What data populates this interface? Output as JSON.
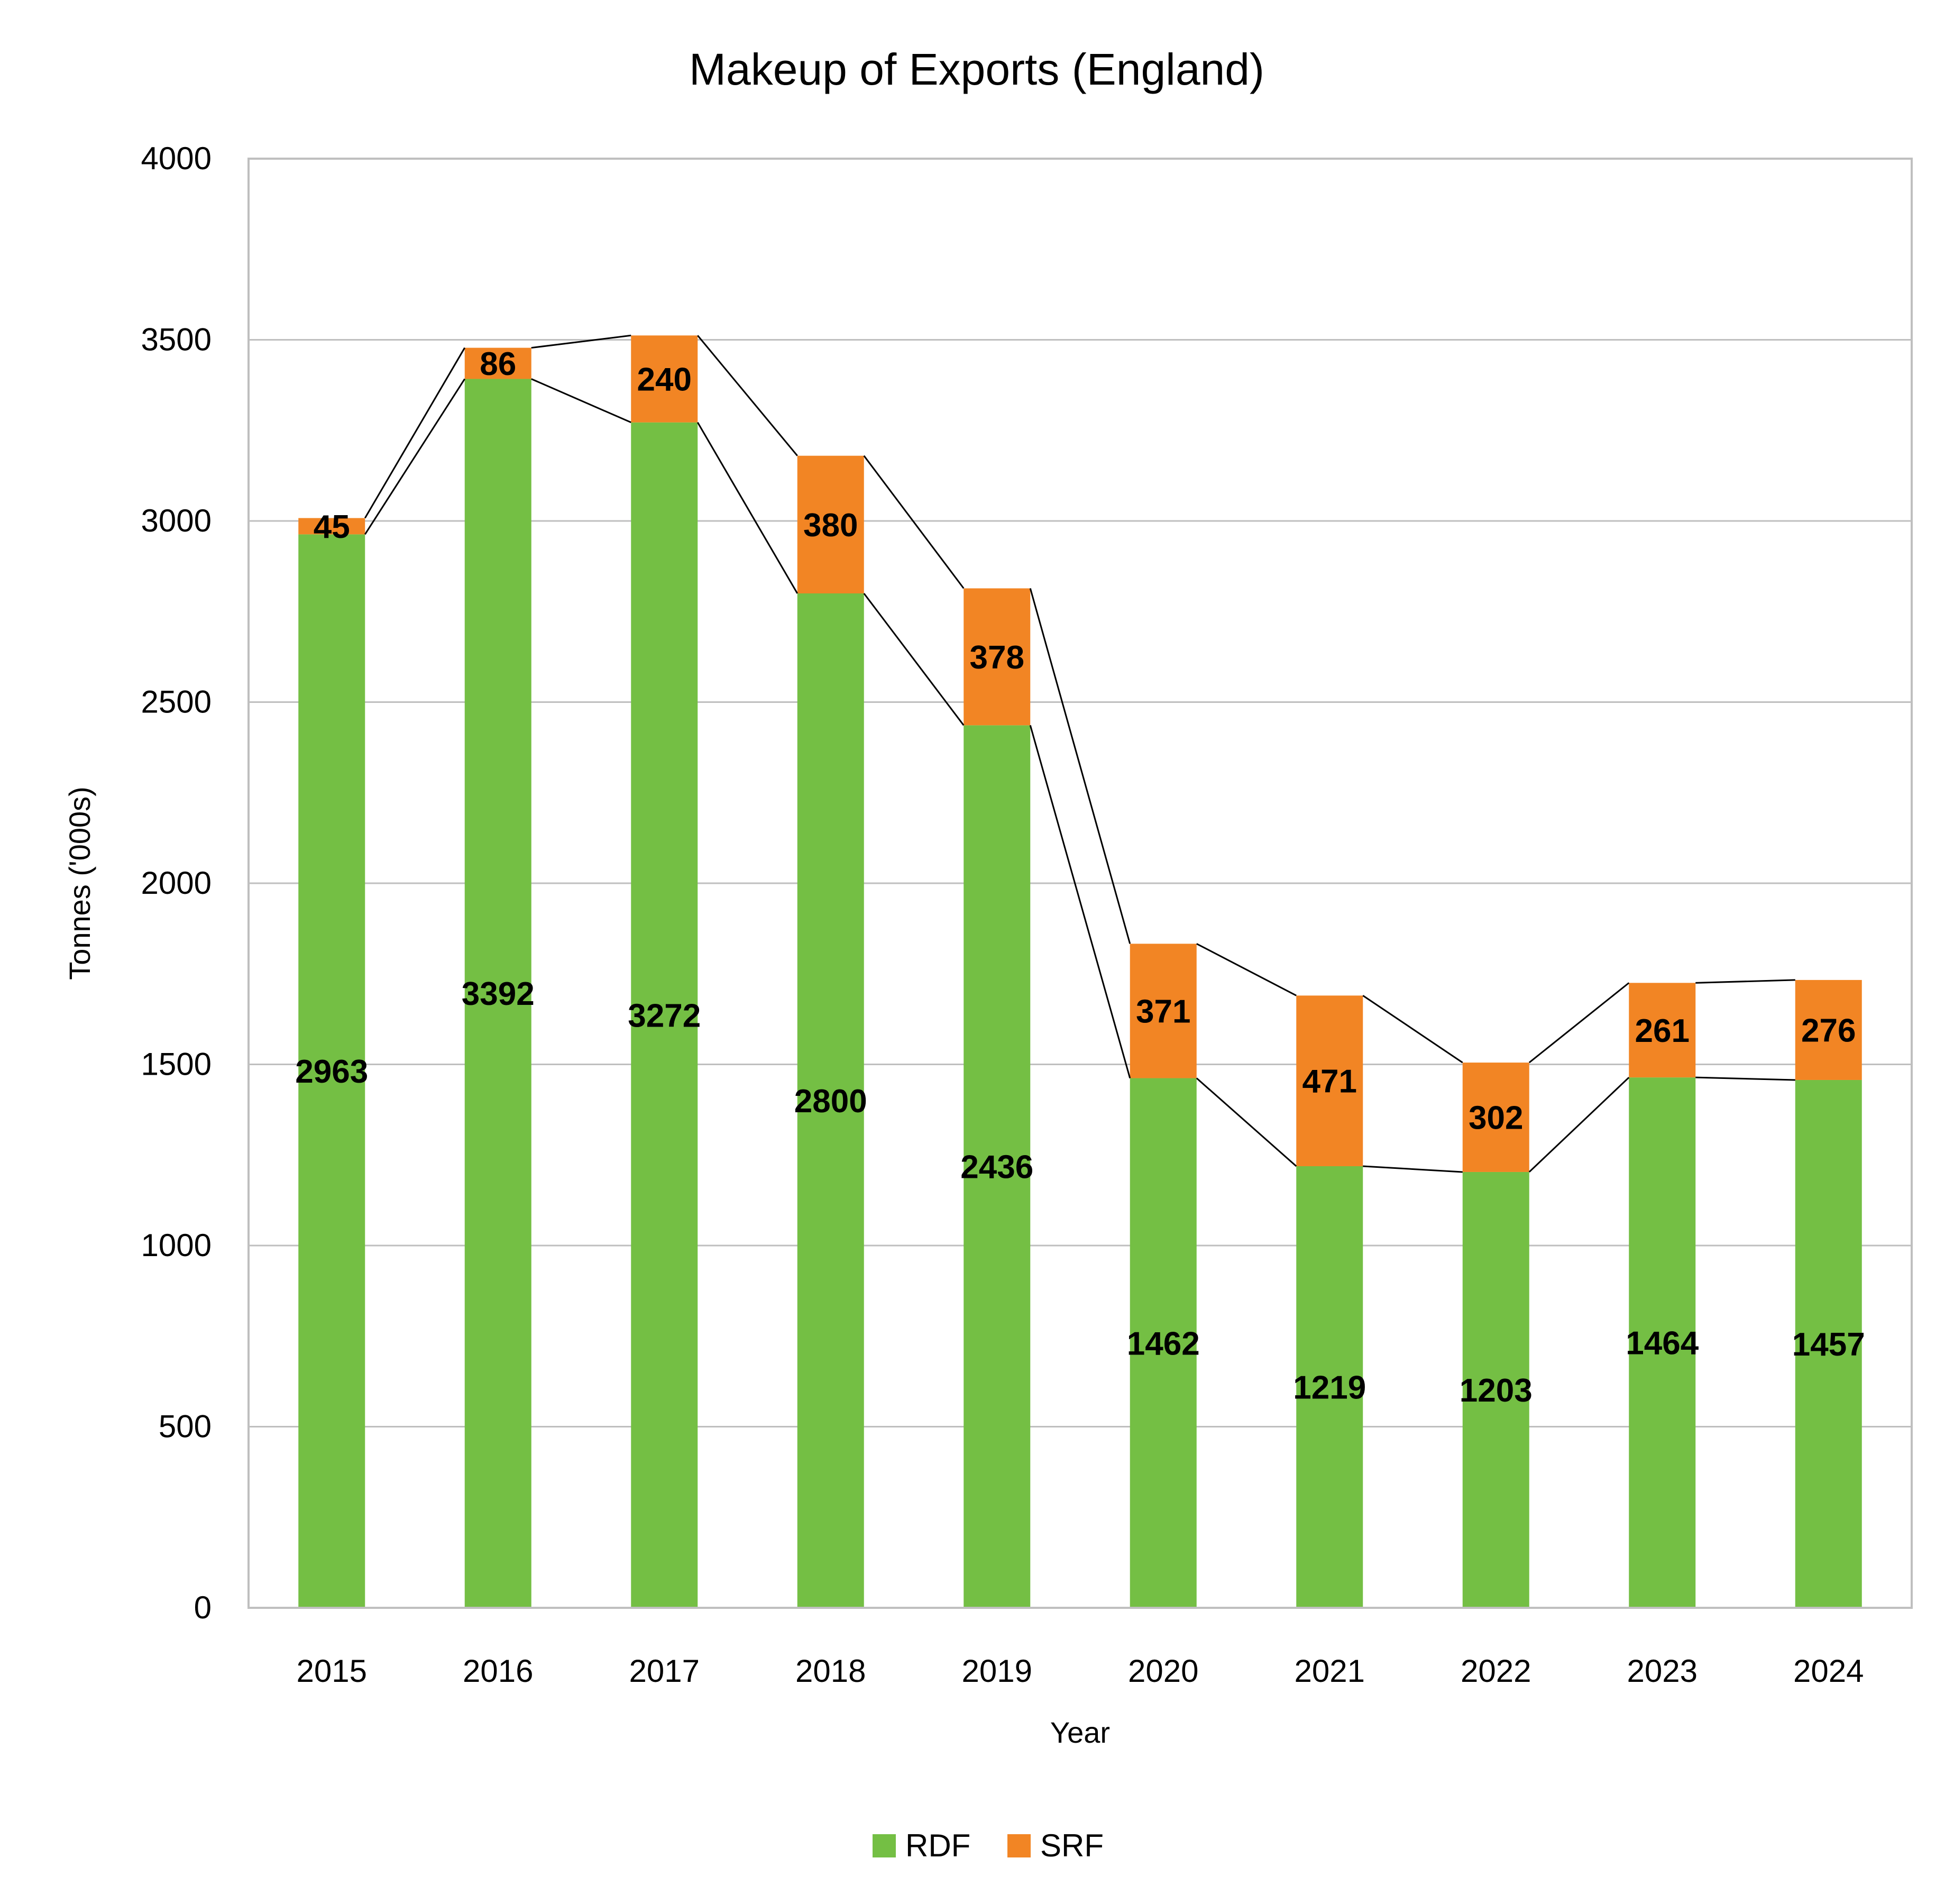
{
  "chart_data": {
    "type": "bar",
    "stacked": true,
    "title": "Makeup of Exports (England)",
    "xlabel": "Year",
    "ylabel": "Tonnes ('000s)",
    "ylim": [
      0,
      4000
    ],
    "yticks": [
      0,
      500,
      1000,
      1500,
      2000,
      2500,
      3000,
      3500,
      4000
    ],
    "grid": true,
    "legend_position": "bottom",
    "categories": [
      "2015",
      "2016",
      "2017",
      "2018",
      "2019",
      "2020",
      "2021",
      "2022",
      "2023",
      "2024"
    ],
    "series": [
      {
        "name": "RDF",
        "color": "#74bf44",
        "values": [
          2963,
          3392,
          3272,
          2800,
          2436,
          1462,
          1219,
          1203,
          1464,
          1457
        ]
      },
      {
        "name": "SRF",
        "color": "#f28524",
        "values": [
          45,
          86,
          240,
          380,
          378,
          371,
          471,
          302,
          261,
          276
        ]
      }
    ],
    "series_lines": true
  }
}
